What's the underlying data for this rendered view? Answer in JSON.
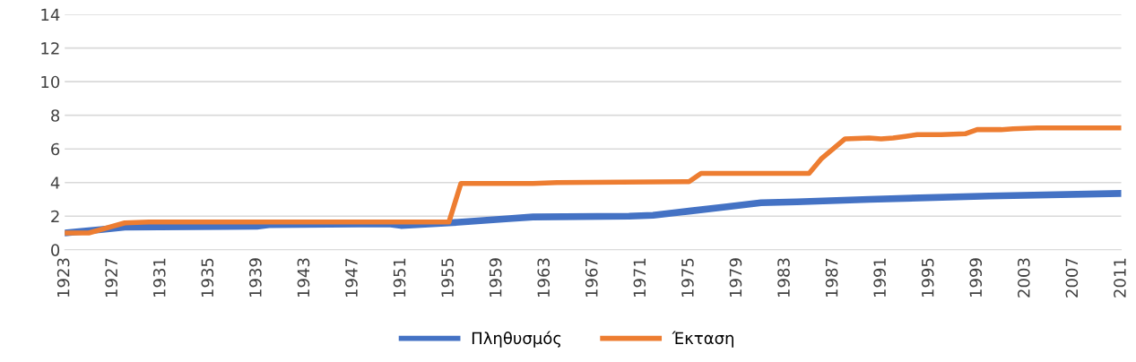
{
  "chart_data": {
    "type": "line",
    "series": [
      {
        "name": "Πληθυσμός",
        "color": "#4472c4",
        "x": [
          1923,
          1926,
          1928,
          1939,
          1940,
          1950,
          1951,
          1955,
          1960,
          1962,
          1970,
          1972,
          1975,
          1978,
          1981,
          1984,
          1990,
          2000,
          2011
        ],
        "values": [
          1.0,
          1.2,
          1.35,
          1.4,
          1.5,
          1.55,
          1.45,
          1.6,
          1.85,
          1.95,
          2.0,
          2.05,
          2.3,
          2.55,
          2.8,
          2.85,
          3.0,
          3.2,
          3.35
        ]
      },
      {
        "name": "Έκταση",
        "color": "#ed7d31",
        "x": [
          1923,
          1925,
          1928,
          1930,
          1955,
          1956,
          1962,
          1964,
          1975,
          1976,
          1985,
          1986,
          1988,
          1990,
          1991,
          1992,
          1993,
          1994,
          1996,
          1998,
          1999,
          2001,
          2002,
          2004,
          2011
        ],
        "values": [
          1.0,
          1.0,
          1.6,
          1.65,
          1.65,
          3.95,
          3.95,
          4.0,
          4.05,
          4.55,
          4.55,
          5.4,
          6.6,
          6.65,
          6.6,
          6.65,
          6.75,
          6.85,
          6.85,
          6.9,
          7.15,
          7.15,
          7.2,
          7.25,
          7.25
        ]
      }
    ],
    "xlim": [
      1923,
      2011
    ],
    "xticks": [
      1923,
      1927,
      1931,
      1935,
      1939,
      1943,
      1947,
      1951,
      1955,
      1959,
      1963,
      1967,
      1971,
      1975,
      1979,
      1983,
      1987,
      1991,
      1995,
      1999,
      2003,
      2007,
      2011
    ],
    "ylim": [
      0,
      14
    ],
    "yticks": [
      0,
      2,
      4,
      6,
      8,
      10,
      12,
      14
    ],
    "grid": "y",
    "legend": "bottom",
    "marker": "none",
    "line_style": "solid"
  }
}
